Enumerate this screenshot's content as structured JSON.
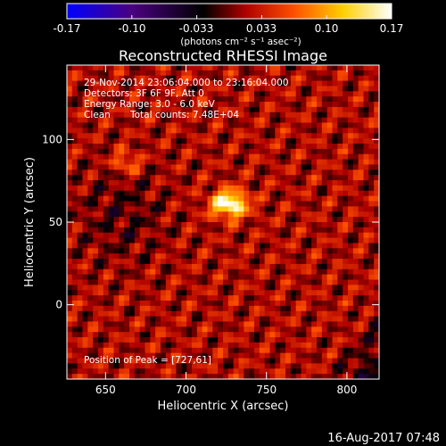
{
  "chart_data": {
    "type": "heatmap",
    "title": "Reconstructed RHESSI Image",
    "xlabel": "Heliocentric X (arcsec)",
    "ylabel": "Heliocentric Y (arcsec)",
    "xlim": [
      626,
      820
    ],
    "ylim": [
      -45,
      145
    ],
    "x_ticks": [
      650,
      700,
      750,
      800
    ],
    "y_ticks": [
      0,
      50,
      100
    ],
    "x_tick_labels": [
      "650",
      "700",
      "750",
      "800"
    ],
    "y_tick_labels": [
      "0",
      "50",
      "100"
    ],
    "colorbar": {
      "min": -0.17,
      "max": 0.17,
      "ticks": [
        "-0.17",
        "-0.10",
        "-0.033",
        "0.033",
        "0.10",
        "0.17"
      ],
      "unit_label": "(photons cm⁻² s⁻¹ asec⁻²)",
      "colors": [
        "#0000ff",
        "#4a0080",
        "#000000",
        "#b00000",
        "#ff5000",
        "#ffd000",
        "#ffffff"
      ]
    },
    "annotations": {
      "time_range": "29-Nov-2014 23:06:04.000 to 23:16:04.000",
      "detectors": "Detectors: 3F 6F 9F, Att 0",
      "energy_range": "Energy Range: 3.0 - 6.0 keV",
      "clean": "Clean",
      "total_counts": "Total counts: 7.48E+04",
      "peak_position": "Position of Peak = [727,61]"
    },
    "peak": [
      727,
      61
    ],
    "footer_date": "16-Aug-2017 07:48"
  }
}
